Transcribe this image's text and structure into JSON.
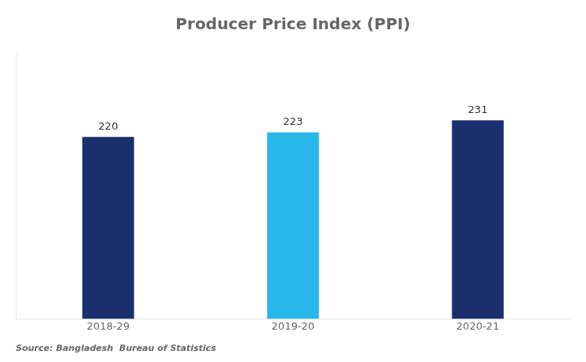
{
  "chart_data": {
    "type": "bar",
    "title": "Producer Price Index (PPI)",
    "categories": [
      "2018-29",
      "2019-20",
      "2020-21"
    ],
    "values": [
      220,
      223,
      231
    ],
    "colors": [
      "#1b2f6e",
      "#29b6e8",
      "#1b2f6e"
    ],
    "ylim": [
      100,
      275
    ],
    "grid": false,
    "data_labels": true,
    "tick_labels": "x",
    "annotations": [
      "Source: Bangladesh  Bureau of Statistics"
    ]
  }
}
